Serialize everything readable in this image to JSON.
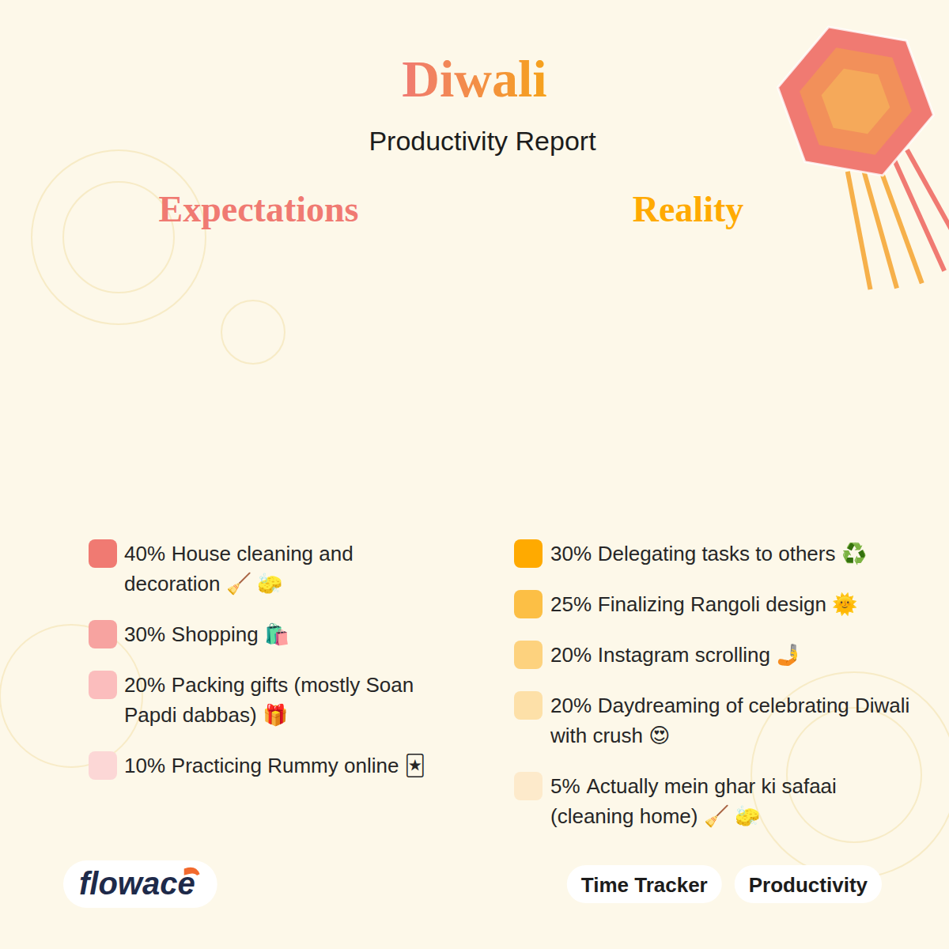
{
  "header": {
    "title": "Diwali",
    "subtitle": "Productivity Report"
  },
  "chart_data": [
    {
      "type": "donut",
      "title": "Expectations",
      "categories": [
        "House cleaning and decoration 🧹 🧽",
        "Shopping 🛍️",
        "Packing gifts (mostly Soan Papdi dabbas) 🎁",
        "Practicing Rummy online 🃏"
      ],
      "values": [
        40,
        30,
        20,
        10
      ],
      "value_labels": [
        "40%",
        "30%",
        "20%",
        "10%"
      ],
      "colors": [
        "#f07a72",
        "#f7a3a0",
        "#fbbdbd",
        "#fcd7d6"
      ],
      "legend": "bottom",
      "data_labels": false
    },
    {
      "type": "donut",
      "title": "Reality",
      "categories": [
        "Delegating tasks to others ♻️",
        "Finalizing Rangoli design 🌞",
        "Instagram scrolling 🤳",
        "Daydreaming of celebrating Diwali with crush 😍",
        "Actually mein ghar ki safaai (cleaning home) 🧹 🧽"
      ],
      "values": [
        30,
        25,
        20,
        20,
        5
      ],
      "value_labels": [
        "30%",
        "25%",
        "20%",
        "20%",
        "5%"
      ],
      "colors": [
        "#ffaa00",
        "#fcbf45",
        "#fdd27e",
        "#fde0a8",
        "#fdeacb"
      ],
      "legend": "bottom",
      "data_labels": false
    }
  ],
  "footer": {
    "brand": "flowace",
    "tags": [
      "Time Tracker",
      "Productivity"
    ]
  }
}
